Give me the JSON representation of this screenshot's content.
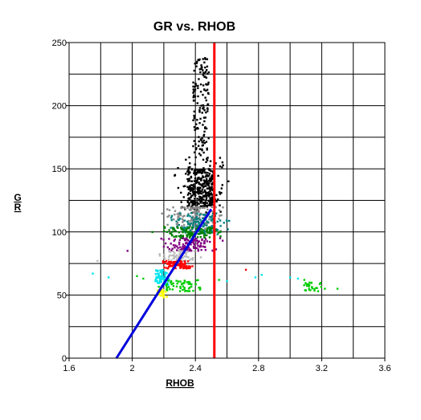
{
  "chart_data": {
    "type": "scatter",
    "title": "GR vs. RHOB",
    "xlabel": "RHOB",
    "ylabel": "GR",
    "xlim": [
      1.6,
      3.6
    ],
    "ylim": [
      0,
      250
    ],
    "x_ticks": [
      "1.6",
      "2",
      "2.4",
      "2.8",
      "3.2",
      "3.6"
    ],
    "y_ticks": [
      "0",
      "50",
      "100",
      "150",
      "200",
      "250"
    ],
    "grid": true,
    "series": [
      {
        "color": "#000000",
        "x_range": [
          2.2,
          2.66
        ],
        "y_range": [
          115,
          238
        ],
        "count": 520,
        "dense": {
          "x": [
            2.35,
            2.52
          ],
          "y": [
            120,
            150
          ]
        }
      },
      {
        "color": "#888888",
        "x_range": [
          2.15,
          2.62
        ],
        "y_range": [
          100,
          120
        ],
        "count": 150
      },
      {
        "color": "#008080",
        "x_range": [
          2.18,
          2.68
        ],
        "y_range": [
          98,
          115
        ],
        "count": 130
      },
      {
        "color": "#008000",
        "x_range": [
          2.1,
          2.63
        ],
        "y_range": [
          95,
          104
        ],
        "count": 110
      },
      {
        "color": "#800080",
        "x_range": [
          2.15,
          2.6
        ],
        "y_range": [
          85,
          95
        ],
        "count": 120
      },
      {
        "color": "#bbbbbb",
        "x_range": [
          2.15,
          2.45
        ],
        "y_range": [
          77,
          86
        ],
        "count": 60
      },
      {
        "color": "#ff0000",
        "x_range": [
          2.15,
          2.42
        ],
        "y_range": [
          71,
          77
        ],
        "count": 90
      },
      {
        "color": "#00e5ee",
        "x_range": [
          2.12,
          2.25
        ],
        "y_range": [
          58,
          70
        ],
        "count": 70
      },
      {
        "color": "#00cc00",
        "x_range": [
          2.12,
          2.5
        ],
        "y_range": [
          53,
          62
        ],
        "count": 60
      },
      {
        "color": "#ffff00",
        "x_range": [
          2.15,
          2.23
        ],
        "y_range": [
          48,
          54
        ],
        "count": 25
      }
    ],
    "outliers": [
      {
        "x": 1.78,
        "y": 77,
        "color": "#bbbbbb"
      },
      {
        "x": 1.75,
        "y": 67,
        "color": "#00e5ee"
      },
      {
        "x": 1.85,
        "y": 64,
        "color": "#00e5ee"
      },
      {
        "x": 1.97,
        "y": 85,
        "color": "#800080"
      },
      {
        "x": 2.03,
        "y": 65,
        "color": "#00cc00"
      },
      {
        "x": 2.07,
        "y": 63,
        "color": "#00cc00"
      },
      {
        "x": 2.72,
        "y": 70,
        "color": "#ff0000"
      },
      {
        "x": 2.78,
        "y": 64,
        "color": "#00e5ee"
      },
      {
        "x": 2.82,
        "y": 66,
        "color": "#00e5ee"
      },
      {
        "x": 2.55,
        "y": 62,
        "color": "#00cc00"
      },
      {
        "x": 2.6,
        "y": 61,
        "color": "#00e5ee"
      },
      {
        "x": 3.0,
        "y": 64,
        "color": "#00e5ee"
      },
      {
        "x": 3.05,
        "y": 63,
        "color": "#00e5ee"
      },
      {
        "x": 3.09,
        "y": 62,
        "color": "#00cc00"
      },
      {
        "x": 3.12,
        "y": 57,
        "color": "#00cc00"
      },
      {
        "x": 3.22,
        "y": 55,
        "color": "#00cc00"
      },
      {
        "x": 3.3,
        "y": 55,
        "color": "#00cc00"
      }
    ],
    "green_cluster": {
      "x_range": [
        3.08,
        3.2
      ],
      "y_range": [
        53,
        60
      ],
      "count": 25,
      "color": "#00cc00"
    },
    "lines": [
      {
        "color": "#0000dd",
        "points": [
          [
            1.9,
            0
          ],
          [
            2.5,
            118
          ]
        ]
      },
      {
        "color": "#ff0000",
        "points": [
          [
            2.52,
            0
          ],
          [
            2.52,
            250
          ]
        ]
      }
    ]
  }
}
